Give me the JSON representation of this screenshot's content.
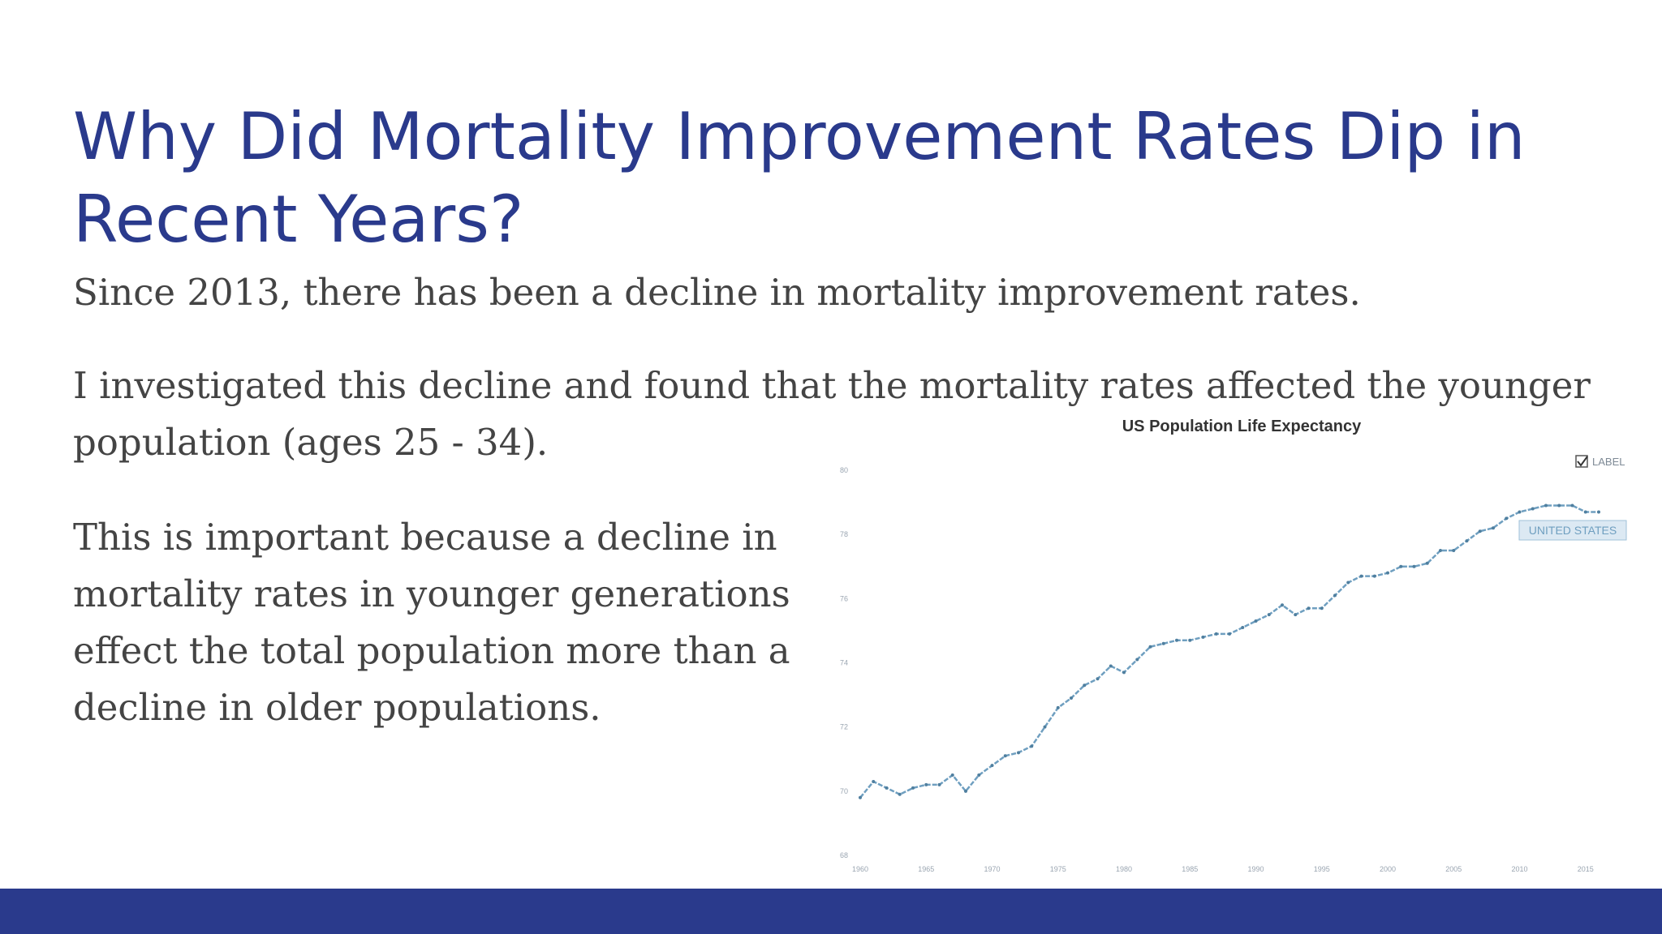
{
  "slide": {
    "title": "Why Did Mortality Improvement Rates Dip in Recent Years?",
    "paragraph_1": "Since 2013, there has been a decline in mortality improvement rates.",
    "paragraph_2": "I investigated this decline and found that the mortality rates affected the younger population (ages 25 - 34).",
    "paragraph_3": "This is important because a decline in mortality rates in younger generations effect the total population more than a decline in older populations.",
    "accent_color": "#2a3a8c",
    "text_color": "#444444"
  },
  "chart_data": {
    "type": "line",
    "title": "US Population Life Expectancy",
    "legend_checkbox_label": "LABEL",
    "legend_checked": true,
    "legend_position": "top-right",
    "series_label_box": "UNITED STATES",
    "grid": false,
    "xlim": [
      1960,
      2016
    ],
    "ylim": [
      68,
      80
    ],
    "x_ticks": [
      1960,
      1965,
      1970,
      1975,
      1980,
      1985,
      1990,
      1995,
      2000,
      2005,
      2010,
      2015
    ],
    "y_ticks": [
      68,
      70,
      72,
      74,
      76,
      78,
      80
    ],
    "series": [
      {
        "name": "UNITED STATES",
        "color": "#6f9fc0",
        "x": [
          1960,
          1961,
          1962,
          1963,
          1964,
          1965,
          1966,
          1967,
          1968,
          1969,
          1970,
          1971,
          1972,
          1973,
          1974,
          1975,
          1976,
          1977,
          1978,
          1979,
          1980,
          1981,
          1982,
          1983,
          1984,
          1985,
          1986,
          1987,
          1988,
          1989,
          1990,
          1991,
          1992,
          1993,
          1994,
          1995,
          1996,
          1997,
          1998,
          1999,
          2000,
          2001,
          2002,
          2003,
          2004,
          2005,
          2006,
          2007,
          2008,
          2009,
          2010,
          2011,
          2012,
          2013,
          2014,
          2015,
          2016
        ],
        "y": [
          69.8,
          70.3,
          70.1,
          69.9,
          70.1,
          70.2,
          70.2,
          70.5,
          70.0,
          70.5,
          70.8,
          71.1,
          71.2,
          71.4,
          72.0,
          72.6,
          72.9,
          73.3,
          73.5,
          73.9,
          73.7,
          74.1,
          74.5,
          74.6,
          74.7,
          74.7,
          74.8,
          74.9,
          74.9,
          75.1,
          75.3,
          75.5,
          75.8,
          75.5,
          75.7,
          75.7,
          76.1,
          76.5,
          76.7,
          76.7,
          76.8,
          77.0,
          77.0,
          77.1,
          77.5,
          77.5,
          77.8,
          78.1,
          78.2,
          78.5,
          78.7,
          78.8,
          78.9,
          78.9,
          78.9,
          78.7,
          78.7
        ]
      }
    ]
  }
}
